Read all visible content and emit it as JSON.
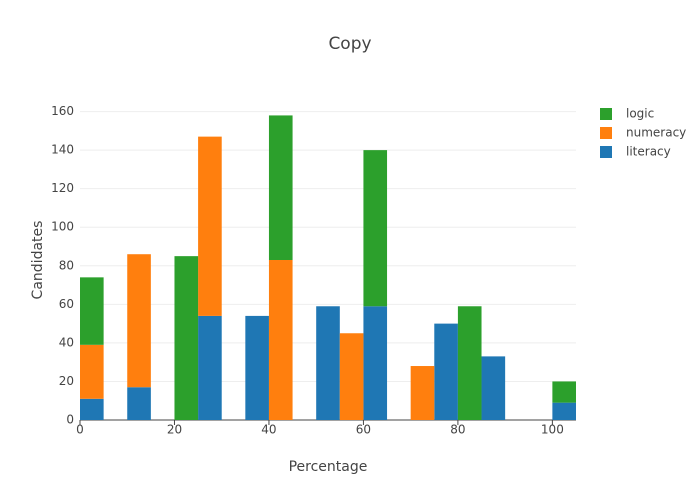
{
  "chart_data": {
    "type": "histogram",
    "title": "Copy",
    "x_label": "Percentage",
    "y_label": "Candidates",
    "bins": [
      0,
      5,
      10,
      15,
      20,
      25,
      30,
      35,
      40,
      45,
      50,
      55,
      60,
      65,
      70,
      75,
      80,
      85,
      90,
      95,
      100,
      105
    ],
    "series": [
      {
        "name": "literacy",
        "color": "#1f77b4",
        "values": [
          11,
          0,
          17,
          0,
          0,
          54,
          0,
          54,
          0,
          0,
          59,
          0,
          59,
          0,
          0,
          50,
          0,
          33,
          0,
          0,
          9
        ]
      },
      {
        "name": "numeracy",
        "color": "#ff7f0e",
        "values": [
          28,
          0,
          69,
          0,
          0,
          93,
          0,
          0,
          83,
          0,
          0,
          45,
          0,
          0,
          28,
          0,
          0,
          0,
          0,
          0,
          0
        ]
      },
      {
        "name": "logic",
        "color": "#2ca02c",
        "values": [
          35,
          0,
          0,
          0,
          85,
          0,
          0,
          0,
          75,
          0,
          0,
          0,
          81,
          0,
          0,
          0,
          59,
          0,
          0,
          0,
          11
        ]
      }
    ],
    "xlim": [
      0,
      105
    ],
    "xticks": [
      0,
      20,
      40,
      60,
      80,
      100
    ],
    "ylim": [
      0,
      166
    ],
    "yticks": [
      0,
      20,
      40,
      60,
      80,
      100,
      120,
      140,
      160
    ],
    "grid": true,
    "stacked": true
  }
}
